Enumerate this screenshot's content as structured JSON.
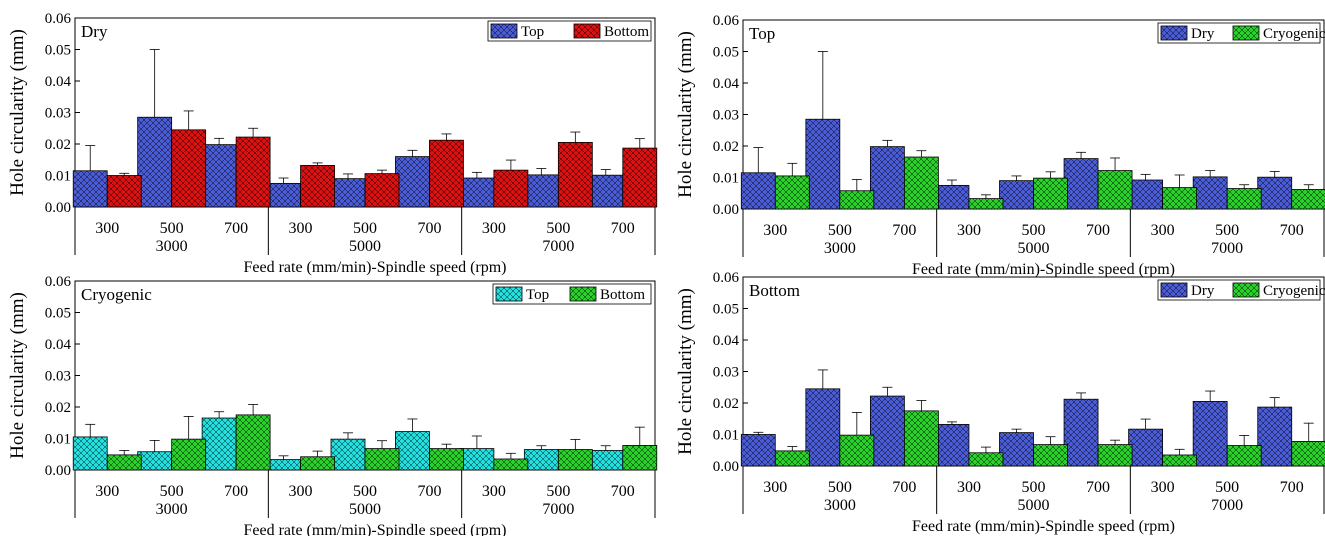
{
  "colors": {
    "dry": "#4a5bd6",
    "cryo_green": "#2bd12b",
    "bottom_red": "#dd1111",
    "top_cyan": "#22e0e0"
  },
  "chart_data": [
    {
      "type": "bar",
      "panel_label": "Dry",
      "ylabel": "Hole circularity (mm)",
      "xlabel": "Feed rate (mm/min)-Spindle speed (rpm)",
      "ylim": [
        0,
        0.06
      ],
      "yticks": [
        "0.00",
        "0.01",
        "0.02",
        "0.03",
        "0.04",
        "0.05",
        "0.06"
      ],
      "categories": [
        "300",
        "500",
        "700",
        "300",
        "500",
        "700",
        "300",
        "500",
        "700"
      ],
      "groups": [
        "3000",
        "5000",
        "7000"
      ],
      "legend_position": "top-right",
      "series": [
        {
          "name": "Top",
          "color_key": "dry",
          "values": [
            0.0115,
            0.0285,
            0.0198,
            0.0075,
            0.009,
            0.016,
            0.0092,
            0.0102,
            0.0101
          ],
          "errors": [
            0.008,
            0.0215,
            0.002,
            0.0017,
            0.0015,
            0.002,
            0.0018,
            0.002,
            0.0018
          ]
        },
        {
          "name": "Bottom",
          "color_key": "bottom_red",
          "values": [
            0.01,
            0.0245,
            0.0222,
            0.0132,
            0.0106,
            0.0212,
            0.0117,
            0.0205,
            0.0187
          ],
          "errors": [
            0.0007,
            0.006,
            0.0028,
            0.0008,
            0.0011,
            0.002,
            0.0032,
            0.0033,
            0.003
          ]
        }
      ]
    },
    {
      "type": "bar",
      "panel_label": "Top",
      "ylabel": "Hole circularity (mm)",
      "xlabel": "Feed rate (mm/min)-Spindle speed (rpm)",
      "ylim": [
        0,
        0.06
      ],
      "yticks": [
        "0.00",
        "0.01",
        "0.02",
        "0.03",
        "0.04",
        "0.05",
        "0.06"
      ],
      "categories": [
        "300",
        "500",
        "700",
        "300",
        "500",
        "700",
        "300",
        "500",
        "700"
      ],
      "groups": [
        "3000",
        "5000",
        "7000"
      ],
      "legend_position": "top-right",
      "series": [
        {
          "name": "Dry",
          "color_key": "dry",
          "values": [
            0.0115,
            0.0285,
            0.0198,
            0.0075,
            0.009,
            0.016,
            0.0092,
            0.0102,
            0.0101
          ],
          "errors": [
            0.008,
            0.0215,
            0.002,
            0.0017,
            0.0015,
            0.002,
            0.0018,
            0.002,
            0.0018
          ]
        },
        {
          "name": "Cryogenic",
          "color_key": "cryo_green",
          "values": [
            0.0105,
            0.0058,
            0.0165,
            0.0033,
            0.0098,
            0.0122,
            0.0068,
            0.0065,
            0.0062
          ],
          "errors": [
            0.004,
            0.0036,
            0.002,
            0.0012,
            0.002,
            0.004,
            0.004,
            0.0012,
            0.0015
          ]
        }
      ]
    },
    {
      "type": "bar",
      "panel_label": "Cryogenic",
      "ylabel": "Hole circularity (mm)",
      "xlabel": "Feed rate (mm/min)-Spindle speed (rpm)",
      "ylim": [
        0,
        0.06
      ],
      "yticks": [
        "0.00",
        "0.01",
        "0.02",
        "0.03",
        "0.04",
        "0.05",
        "0.06"
      ],
      "categories": [
        "300",
        "500",
        "700",
        "300",
        "500",
        "700",
        "300",
        "500",
        "700"
      ],
      "groups": [
        "3000",
        "5000",
        "7000"
      ],
      "legend_position": "top-right",
      "series": [
        {
          "name": "Top",
          "color_key": "top_cyan",
          "values": [
            0.0105,
            0.0058,
            0.0165,
            0.0033,
            0.0098,
            0.0122,
            0.0068,
            0.0065,
            0.0062
          ],
          "errors": [
            0.004,
            0.0036,
            0.002,
            0.0012,
            0.002,
            0.004,
            0.004,
            0.0012,
            0.0015
          ]
        },
        {
          "name": "Bottom",
          "color_key": "cryo_green",
          "values": [
            0.0048,
            0.0098,
            0.0175,
            0.0042,
            0.0068,
            0.0068,
            0.0035,
            0.0065,
            0.0078
          ],
          "errors": [
            0.0014,
            0.0072,
            0.0033,
            0.0018,
            0.0025,
            0.0014,
            0.0018,
            0.0032,
            0.0058
          ]
        }
      ]
    },
    {
      "type": "bar",
      "panel_label": "Bottom",
      "ylabel": "Hole circularity (mm)",
      "xlabel": "Feed rate (mm/min)-Spindle speed (rpm)",
      "ylim": [
        0,
        0.06
      ],
      "yticks": [
        "0.00",
        "0.01",
        "0.02",
        "0.03",
        "0.04",
        "0.05",
        "0.06"
      ],
      "categories": [
        "300",
        "500",
        "700",
        "300",
        "500",
        "700",
        "300",
        "500",
        "700"
      ],
      "groups": [
        "3000",
        "5000",
        "7000"
      ],
      "legend_position": "top-right",
      "series": [
        {
          "name": "Dry",
          "color_key": "dry",
          "values": [
            0.01,
            0.0245,
            0.0222,
            0.0132,
            0.0106,
            0.0212,
            0.0117,
            0.0205,
            0.0187
          ],
          "errors": [
            0.0007,
            0.006,
            0.0028,
            0.0008,
            0.0011,
            0.002,
            0.0032,
            0.0033,
            0.003
          ]
        },
        {
          "name": "Cryogenic",
          "color_key": "cryo_green",
          "values": [
            0.0048,
            0.0098,
            0.0175,
            0.0042,
            0.0068,
            0.0068,
            0.0035,
            0.0065,
            0.0078
          ],
          "errors": [
            0.0014,
            0.0072,
            0.0033,
            0.0018,
            0.0025,
            0.0014,
            0.0018,
            0.0032,
            0.0058
          ]
        }
      ]
    }
  ]
}
